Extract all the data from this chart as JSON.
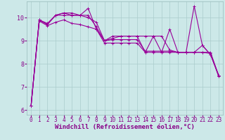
{
  "background_color": "#cce8e8",
  "plot_bg_color": "#cce8e8",
  "line_color": "#990099",
  "grid_color": "#aacccc",
  "xlabel": "Windchill (Refroidissement éolien,°C)",
  "xlim": [
    -0.5,
    23.5
  ],
  "ylim": [
    5.8,
    10.7
  ],
  "yticks": [
    6,
    7,
    8,
    9,
    10
  ],
  "xticks": [
    0,
    1,
    2,
    3,
    4,
    5,
    6,
    7,
    8,
    9,
    10,
    11,
    12,
    13,
    14,
    15,
    16,
    17,
    18,
    19,
    20,
    21,
    22,
    23
  ],
  "series": [
    [
      6.2,
      9.9,
      9.7,
      10.1,
      10.2,
      10.1,
      10.1,
      10.0,
      9.8,
      9.0,
      9.1,
      9.2,
      9.2,
      9.2,
      8.5,
      9.2,
      8.5,
      9.5,
      8.5,
      8.5,
      10.5,
      8.8,
      8.4,
      7.5
    ],
    [
      6.2,
      9.9,
      9.7,
      10.1,
      10.2,
      10.2,
      10.1,
      10.4,
      9.5,
      9.0,
      9.2,
      9.2,
      9.2,
      9.2,
      9.2,
      9.2,
      9.2,
      8.6,
      8.5,
      8.5,
      8.5,
      8.8,
      8.4,
      7.5
    ],
    [
      6.2,
      9.9,
      9.75,
      10.1,
      10.1,
      10.1,
      10.1,
      10.1,
      9.6,
      9.0,
      9.05,
      9.05,
      9.05,
      9.05,
      8.55,
      8.55,
      8.55,
      8.55,
      8.5,
      8.5,
      8.5,
      8.5,
      8.5,
      7.5
    ],
    [
      6.2,
      9.85,
      9.65,
      9.8,
      9.9,
      9.75,
      9.7,
      9.6,
      9.5,
      8.9,
      8.9,
      8.9,
      8.9,
      8.9,
      8.5,
      8.5,
      8.5,
      8.5,
      8.5,
      8.5,
      8.5,
      8.5,
      8.45,
      7.45
    ]
  ],
  "marker": "+",
  "markersize": 3,
  "linewidth": 0.8,
  "xlabel_fontsize": 6.5,
  "tick_fontsize": 5.5,
  "label_color": "#880088"
}
